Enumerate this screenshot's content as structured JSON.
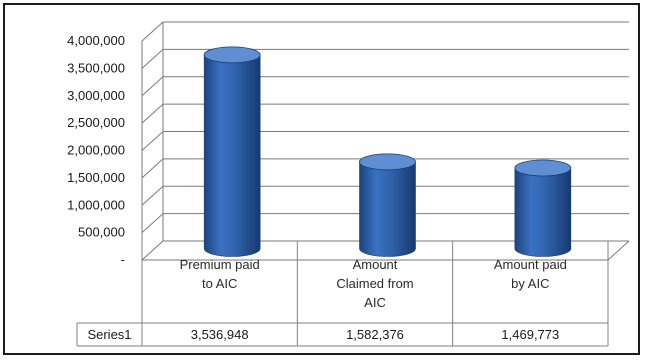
{
  "chart_data": {
    "type": "bar",
    "style": "3d-cylinder",
    "categories": [
      [
        "Premium paid",
        "to AIC"
      ],
      [
        "Amount",
        "Claimed from",
        "AIC"
      ],
      [
        "Amount paid",
        "by AIC"
      ]
    ],
    "series": [
      {
        "name": "Series1",
        "values": [
          3536948,
          1582376,
          1469773
        ],
        "value_labels": [
          "3,536,948",
          "1,582,376",
          "1,469,773"
        ]
      }
    ],
    "ylim": [
      0,
      4000000
    ],
    "yticks": [
      0,
      500000,
      1000000,
      1500000,
      2000000,
      2500000,
      3000000,
      3500000,
      4000000
    ],
    "ytick_labels": [
      "-",
      "500,000",
      "1,000,000",
      "1,500,000",
      "2,000,000",
      "2,500,000",
      "3,000,000",
      "3,500,000",
      "4,000,000"
    ],
    "grid": true,
    "data_table": true,
    "colors": {
      "bar": "#2f63ad",
      "bar_dark": "#173f7a",
      "bar_top": "#5f8fd2",
      "grid": "#7a7a7a",
      "table": "#808080"
    }
  }
}
